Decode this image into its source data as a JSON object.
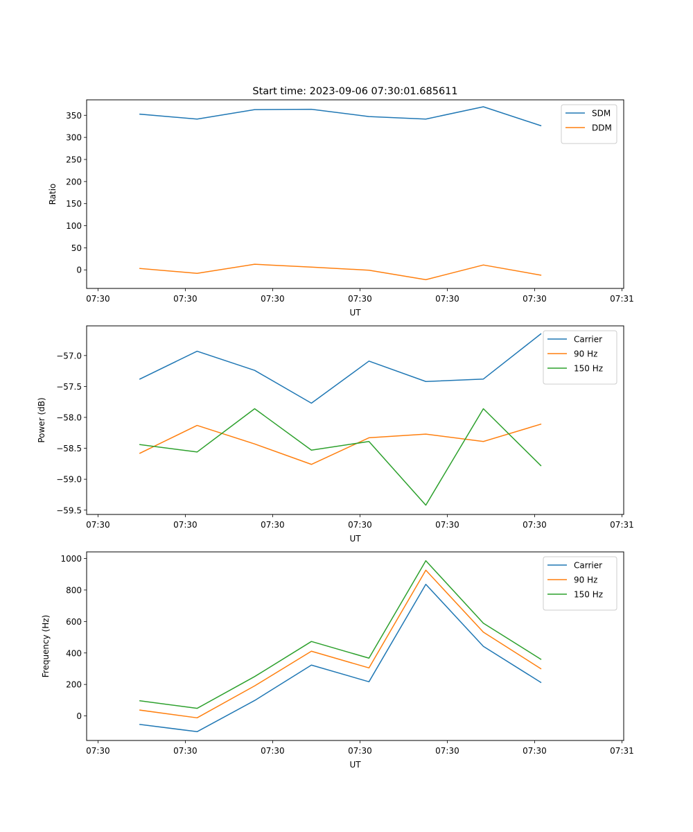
{
  "figure_title": "Start time: 2023-09-06 07:30:01.685611",
  "chart_data": [
    {
      "type": "line",
      "title": "Start time: 2023-09-06 07:30:01.685611",
      "xlabel": "UT",
      "ylabel": "Ratio",
      "x_unit": "seconds after 07:30:00",
      "x": [
        4.8,
        11.35,
        17.94,
        24.44,
        31.03,
        37.54,
        44.13,
        50.71
      ],
      "xlim": [
        -1.3,
        60.2
      ],
      "xticks": [
        0,
        10,
        20,
        30,
        40,
        50,
        60
      ],
      "xtick_labels": [
        "07:30",
        "07:30",
        "07:30",
        "07:30",
        "07:30",
        "07:30",
        "07:31"
      ],
      "ylim": [
        -42,
        385
      ],
      "yticks": [
        0,
        50,
        100,
        150,
        200,
        250,
        300,
        350
      ],
      "ytick_labels": [
        "0",
        "50",
        "100",
        "150",
        "200",
        "250",
        "300",
        "350"
      ],
      "grid": false,
      "legend_position": "top-right",
      "series": [
        {
          "name": "SDM",
          "color": "#1f77b4",
          "values": [
            352.6,
            341.5,
            362.9,
            363.7,
            347.1,
            341.5,
            369.3,
            326.5
          ]
        },
        {
          "name": "DDM",
          "color": "#ff7f0e",
          "values": [
            3.2,
            -7.9,
            12.7,
            6.3,
            -0.8,
            -22.2,
            11.1,
            -11.9
          ]
        }
      ]
    },
    {
      "type": "line",
      "title": "",
      "xlabel": "UT",
      "ylabel": "Power (dB)",
      "x_unit": "seconds after 07:30:00",
      "x": [
        4.8,
        11.35,
        17.94,
        24.44,
        31.03,
        37.54,
        44.13,
        50.71
      ],
      "xlim": [
        -1.3,
        60.2
      ],
      "xticks": [
        0,
        10,
        20,
        30,
        40,
        50,
        60
      ],
      "xtick_labels": [
        "07:30",
        "07:30",
        "07:30",
        "07:30",
        "07:30",
        "07:30",
        "07:31"
      ],
      "ylim": [
        -59.57,
        -56.52
      ],
      "yticks": [
        -57.0,
        -57.5,
        -58.0,
        -58.5,
        -59.0,
        -59.5
      ],
      "ytick_labels": [
        "−57.0",
        "−57.5",
        "−58.0",
        "−58.5",
        "−59.0",
        "−59.5"
      ],
      "grid": false,
      "legend_position": "top-right",
      "series": [
        {
          "name": "Carrier",
          "color": "#1f77b4",
          "values": [
            -57.38,
            -56.93,
            -57.24,
            -57.77,
            -57.09,
            -57.42,
            -57.38,
            -56.65
          ]
        },
        {
          "name": "90 Hz",
          "color": "#ff7f0e",
          "values": [
            -58.58,
            -58.13,
            -58.43,
            -58.76,
            -58.33,
            -58.27,
            -58.39,
            -58.11
          ]
        },
        {
          "name": "150 Hz",
          "color": "#2ca02c",
          "values": [
            -58.44,
            -58.56,
            -57.86,
            -58.53,
            -58.39,
            -59.42,
            -57.86,
            -58.78
          ]
        }
      ]
    },
    {
      "type": "line",
      "title": "",
      "xlabel": "UT",
      "ylabel": "Frequency (Hz)",
      "x_unit": "seconds after 07:30:00",
      "x": [
        4.8,
        11.35,
        17.94,
        24.44,
        31.03,
        37.54,
        44.13,
        50.71
      ],
      "xlim": [
        -1.3,
        60.2
      ],
      "xticks": [
        0,
        10,
        20,
        30,
        40,
        50,
        60
      ],
      "xtick_labels": [
        "07:30",
        "07:30",
        "07:30",
        "07:30",
        "07:30",
        "07:30",
        "07:31"
      ],
      "ylim": [
        -156,
        1042
      ],
      "yticks": [
        0,
        200,
        400,
        600,
        800,
        1000
      ],
      "ytick_labels": [
        "0",
        "200",
        "400",
        "600",
        "800",
        "1000"
      ],
      "grid": false,
      "legend_position": "top-right",
      "series": [
        {
          "name": "Carrier",
          "color": "#1f77b4",
          "values": [
            -54,
            -100,
            98,
            323,
            217,
            836,
            442,
            213
          ]
        },
        {
          "name": "90 Hz",
          "color": "#ff7f0e",
          "values": [
            37,
            -12,
            191,
            411,
            305,
            926,
            532,
            300
          ]
        },
        {
          "name": "150 Hz",
          "color": "#2ca02c",
          "values": [
            96,
            48,
            250,
            473,
            367,
            986,
            589,
            360
          ]
        }
      ]
    }
  ]
}
